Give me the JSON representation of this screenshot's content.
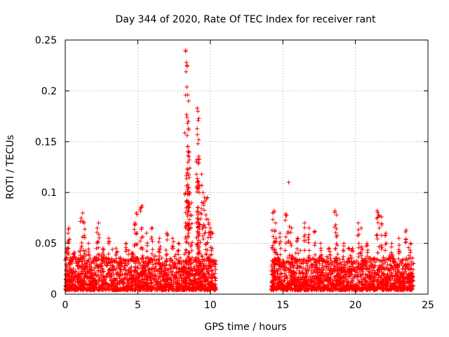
{
  "chart_data": {
    "type": "scatter",
    "title": "Day 344 of 2020, Rate Of TEC Index for receiver rant",
    "xlabel": "GPS time / hours",
    "ylabel": "ROTI / TECUs",
    "xlim": [
      0,
      25
    ],
    "ylim": [
      0,
      0.25
    ],
    "x_ticks": [
      0,
      5,
      10,
      15,
      20,
      25
    ],
    "x_tick_labels": [
      "0",
      "5",
      "10",
      "15",
      "20",
      "25"
    ],
    "y_ticks": [
      0,
      0.05,
      0.1,
      0.15,
      0.2,
      0.25
    ],
    "y_tick_labels": [
      "0",
      "0.05",
      "0.1",
      "0.15",
      "0.2",
      "0.25"
    ],
    "grid": true,
    "marker": "+",
    "color": "#ff0000",
    "series": [
      {
        "name": "ROTI",
        "segments": [
          [
            0,
            10.4
          ],
          [
            14.2,
            24.0
          ]
        ],
        "baseline_points": [
          [
            0.1,
            0.045
          ],
          [
            0.2,
            0.06
          ],
          [
            0.25,
            0.065
          ],
          [
            0.6,
            0.04
          ],
          [
            1.1,
            0.075
          ],
          [
            1.2,
            0.08
          ],
          [
            1.3,
            0.07
          ],
          [
            1.6,
            0.05
          ],
          [
            2.2,
            0.065
          ],
          [
            2.3,
            0.07
          ],
          [
            2.6,
            0.045
          ],
          [
            3.0,
            0.055
          ],
          [
            3.5,
            0.045
          ],
          [
            4.2,
            0.05
          ],
          [
            4.6,
            0.04
          ],
          [
            4.8,
            0.07
          ],
          [
            4.9,
            0.08
          ],
          [
            5.2,
            0.085
          ],
          [
            5.3,
            0.087
          ],
          [
            5.6,
            0.06
          ],
          [
            6.0,
            0.065
          ],
          [
            6.5,
            0.055
          ],
          [
            7.0,
            0.06
          ],
          [
            7.4,
            0.055
          ],
          [
            7.8,
            0.05
          ],
          [
            8.3,
            0.24
          ],
          [
            8.35,
            0.228
          ],
          [
            8.4,
            0.225
          ],
          [
            8.45,
            0.196
          ],
          [
            8.5,
            0.19
          ],
          [
            8.4,
            0.174
          ],
          [
            8.5,
            0.163
          ],
          [
            8.45,
            0.145
          ],
          [
            8.5,
            0.14
          ],
          [
            8.55,
            0.132
          ],
          [
            8.4,
            0.123
          ],
          [
            8.5,
            0.105
          ],
          [
            8.6,
            0.1
          ],
          [
            8.7,
            0.09
          ],
          [
            8.3,
            0.07
          ],
          [
            8.5,
            0.06
          ],
          [
            9.1,
            0.183
          ],
          [
            9.15,
            0.18
          ],
          [
            9.2,
            0.173
          ],
          [
            9.1,
            0.157
          ],
          [
            9.2,
            0.152
          ],
          [
            9.15,
            0.148
          ],
          [
            9.2,
            0.133
          ],
          [
            9.1,
            0.11
          ],
          [
            9.2,
            0.105
          ],
          [
            9.4,
            0.118
          ],
          [
            9.5,
            0.1
          ],
          [
            9.6,
            0.095
          ],
          [
            9.8,
            0.095
          ],
          [
            9.7,
            0.078
          ],
          [
            9.9,
            0.07
          ],
          [
            10.0,
            0.065
          ],
          [
            10.1,
            0.06
          ],
          [
            9.3,
            0.08
          ],
          [
            14.3,
            0.08
          ],
          [
            14.4,
            0.082
          ],
          [
            14.5,
            0.07
          ],
          [
            14.8,
            0.06
          ],
          [
            15.2,
            0.079
          ],
          [
            15.4,
            0.11
          ],
          [
            15.6,
            0.065
          ],
          [
            16.0,
            0.055
          ],
          [
            16.5,
            0.07
          ],
          [
            16.8,
            0.065
          ],
          [
            17.2,
            0.062
          ],
          [
            17.6,
            0.05
          ],
          [
            18.2,
            0.045
          ],
          [
            18.6,
            0.082
          ],
          [
            18.7,
            0.078
          ],
          [
            19.2,
            0.05
          ],
          [
            19.8,
            0.045
          ],
          [
            20.2,
            0.07
          ],
          [
            20.4,
            0.065
          ],
          [
            20.8,
            0.05
          ],
          [
            21.5,
            0.082
          ],
          [
            21.6,
            0.078
          ],
          [
            21.8,
            0.076
          ],
          [
            22.1,
            0.06
          ],
          [
            22.5,
            0.05
          ],
          [
            23.0,
            0.055
          ],
          [
            23.5,
            0.063
          ],
          [
            23.8,
            0.05
          ]
        ]
      }
    ]
  }
}
